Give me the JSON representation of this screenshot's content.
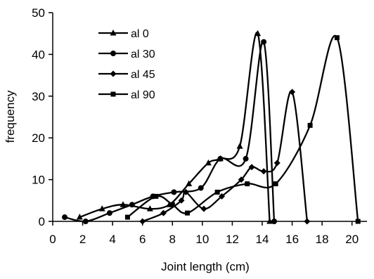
{
  "chart_data": {
    "type": "line",
    "title": "",
    "xlabel": "Joint length (cm)",
    "ylabel": "frequency",
    "xlim": [
      0,
      21
    ],
    "ylim": [
      0,
      50
    ],
    "xticks": [
      0,
      2,
      4,
      6,
      8,
      10,
      12,
      14,
      16,
      18,
      20
    ],
    "yticks": [
      0,
      10,
      20,
      30,
      40,
      50
    ],
    "grid": false,
    "legend_position": "top-left",
    "series": [
      {
        "name": "al 0",
        "marker": "triangle",
        "points": [
          [
            1.8,
            1
          ],
          [
            3.3,
            3
          ],
          [
            4.7,
            4
          ],
          [
            6.5,
            3
          ],
          [
            7.8,
            4
          ],
          [
            9.1,
            9
          ],
          [
            10.4,
            14
          ],
          [
            11.2,
            15
          ],
          [
            12.5,
            18
          ],
          [
            13.7,
            45
          ],
          [
            14.5,
            0
          ]
        ]
      },
      {
        "name": "al 30",
        "marker": "circle",
        "points": [
          [
            0.8,
            1
          ],
          [
            2.2,
            0
          ],
          [
            3.8,
            2
          ],
          [
            5.3,
            4
          ],
          [
            6.7,
            6
          ],
          [
            8.1,
            7
          ],
          [
            9.9,
            8
          ],
          [
            11.2,
            15
          ],
          [
            12.9,
            15
          ],
          [
            14.1,
            43
          ],
          [
            14.8,
            0
          ]
        ]
      },
      {
        "name": "al 45",
        "marker": "diamond",
        "points": [
          [
            6.0,
            0
          ],
          [
            7.4,
            2
          ],
          [
            8.6,
            5
          ],
          [
            8.9,
            7
          ],
          [
            10.1,
            3
          ],
          [
            11.3,
            6
          ],
          [
            12.6,
            10
          ],
          [
            13.3,
            13
          ],
          [
            14.1,
            12
          ],
          [
            15.0,
            14
          ],
          [
            16.0,
            31
          ],
          [
            17.0,
            0
          ]
        ]
      },
      {
        "name": "al 90",
        "marker": "square",
        "points": [
          [
            5.0,
            1
          ],
          [
            6.9,
            6
          ],
          [
            8.0,
            4
          ],
          [
            9.0,
            2
          ],
          [
            11.0,
            7
          ],
          [
            13.0,
            9
          ],
          [
            14.9,
            9
          ],
          [
            17.2,
            23
          ],
          [
            19.0,
            44
          ],
          [
            20.4,
            0
          ]
        ]
      }
    ],
    "colors": {
      "line": "#000000",
      "axis": "#000000",
      "background": "#ffffff"
    }
  }
}
